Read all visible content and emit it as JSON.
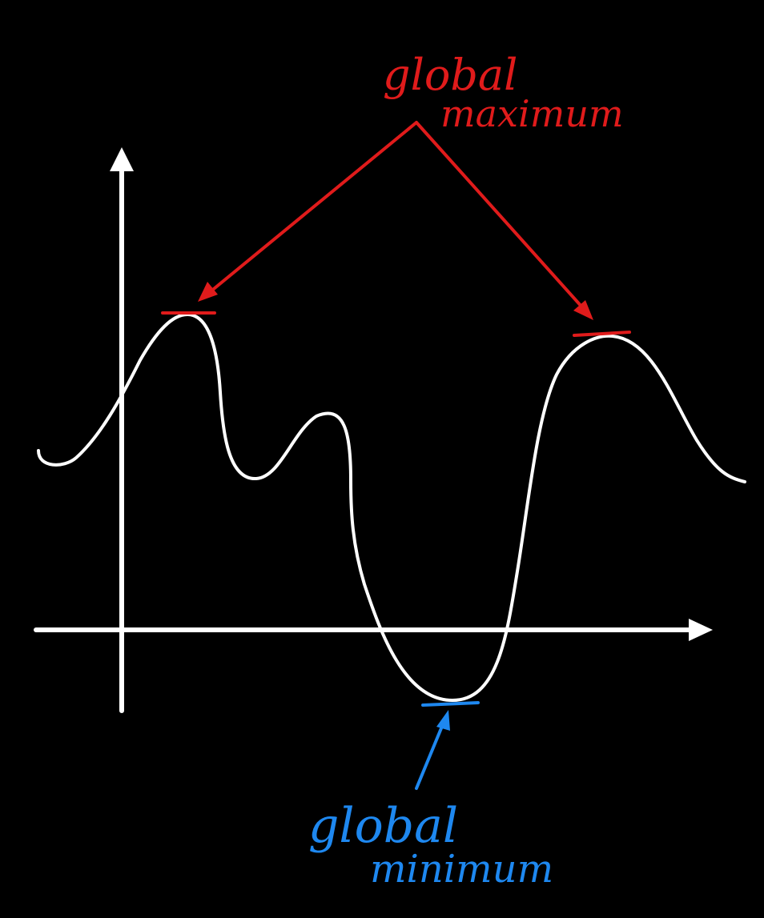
{
  "colors": {
    "background": "#000000",
    "curve": "#ffffff",
    "axes": "#ffffff",
    "maximum": "#e01b1b",
    "minimum": "#1e88f0"
  },
  "labels": {
    "max_line1": "global",
    "max_line2": "maximum",
    "min_line1": "global",
    "min_line2": "minimum"
  }
}
